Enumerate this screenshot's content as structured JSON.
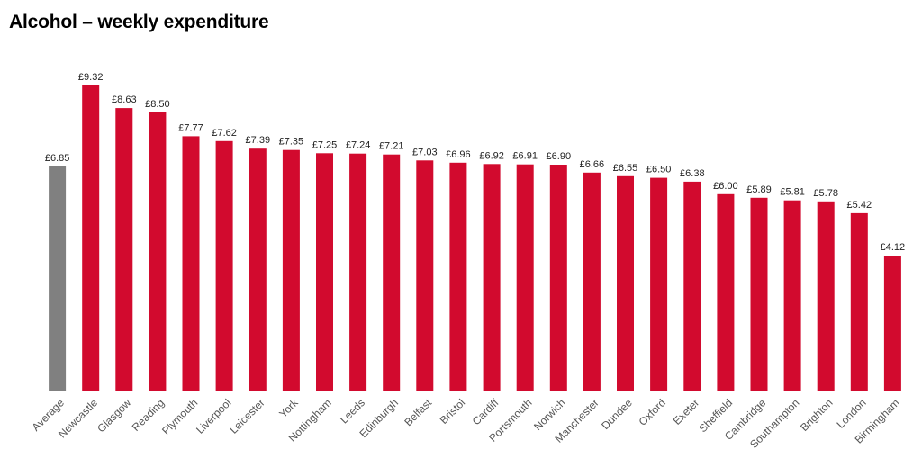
{
  "chart_data": {
    "type": "bar",
    "title": "Alcohol – weekly expenditure",
    "xlabel": "",
    "ylabel": "",
    "ylim": [
      0,
      10
    ],
    "grid": false,
    "legend": "none",
    "value_prefix": "£",
    "categories": [
      "Average",
      "Newcastle",
      "Glasgow",
      "Reading",
      "Plymouth",
      "Liverpool",
      "Leicester",
      "York",
      "Nottingham",
      "Leeds",
      "Edinburgh",
      "Belfast",
      "Bristol",
      "Cardiff",
      "Portsmouth",
      "Norwich",
      "Manchester",
      "Dundee",
      "Oxford",
      "Exeter",
      "Sheffield",
      "Cambridge",
      "Southampton",
      "Brighton",
      "London",
      "Birmingham"
    ],
    "values": [
      6.85,
      9.32,
      8.63,
      8.5,
      7.77,
      7.62,
      7.39,
      7.35,
      7.25,
      7.24,
      7.21,
      7.03,
      6.96,
      6.92,
      6.91,
      6.9,
      6.66,
      6.55,
      6.5,
      6.38,
      6.0,
      5.89,
      5.81,
      5.78,
      5.42,
      4.12
    ],
    "value_labels": [
      "£6.85",
      "£9.32",
      "£8.63",
      "£8.50",
      "£7.77",
      "£7.62",
      "£7.39",
      "£7.35",
      "£7.25",
      "£7.24",
      "£7.21",
      "£7.03",
      "£6.96",
      "£6.92",
      "£6.91",
      "£6.90",
      "£6.66",
      "£6.55",
      "£6.50",
      "£6.38",
      "£6.00",
      "£5.89",
      "£5.81",
      "£5.78",
      "£5.42",
      "£4.12"
    ],
    "colors": {
      "highlight": "#808080",
      "bar": "#d20a2e",
      "axis": "#c8c8c8"
    }
  }
}
